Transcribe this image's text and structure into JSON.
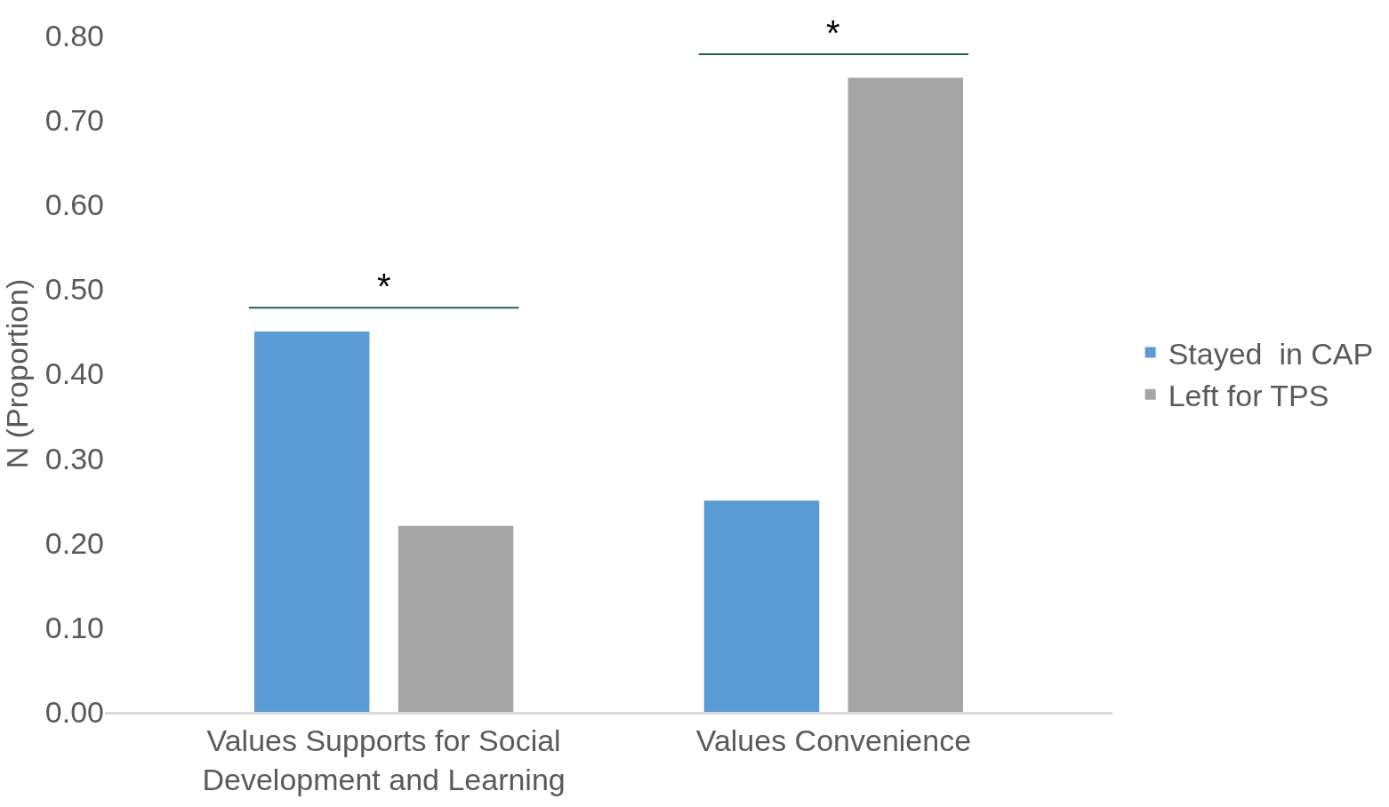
{
  "chart_data": {
    "type": "bar",
    "categories": [
      "Values Supports for Social Development and Learning",
      "Values Convenience"
    ],
    "series": [
      {
        "name": "Stayed  in CAP",
        "color": "#5b9bd5",
        "values": [
          0.45,
          0.25
        ]
      },
      {
        "name": "Left for TPS",
        "color": "#a5a5a5",
        "values": [
          0.22,
          0.75
        ]
      }
    ],
    "ylabel": "N (Proportion)",
    "ylim": [
      0,
      0.8
    ],
    "yticks": [
      {
        "value": 0,
        "label": "0.00"
      },
      {
        "value": 0.1,
        "label": "0.10"
      },
      {
        "value": 0.2,
        "label": "0.20"
      },
      {
        "value": 0.3,
        "label": "0.30"
      },
      {
        "value": 0.4,
        "label": "0.40"
      },
      {
        "value": 0.5,
        "label": "0.50"
      },
      {
        "value": 0.6,
        "label": "0.60"
      },
      {
        "value": 0.7,
        "label": "0.70"
      },
      {
        "value": 0.8,
        "label": "0.80"
      }
    ],
    "annotations": [
      "*",
      "*"
    ],
    "legend": "right"
  }
}
